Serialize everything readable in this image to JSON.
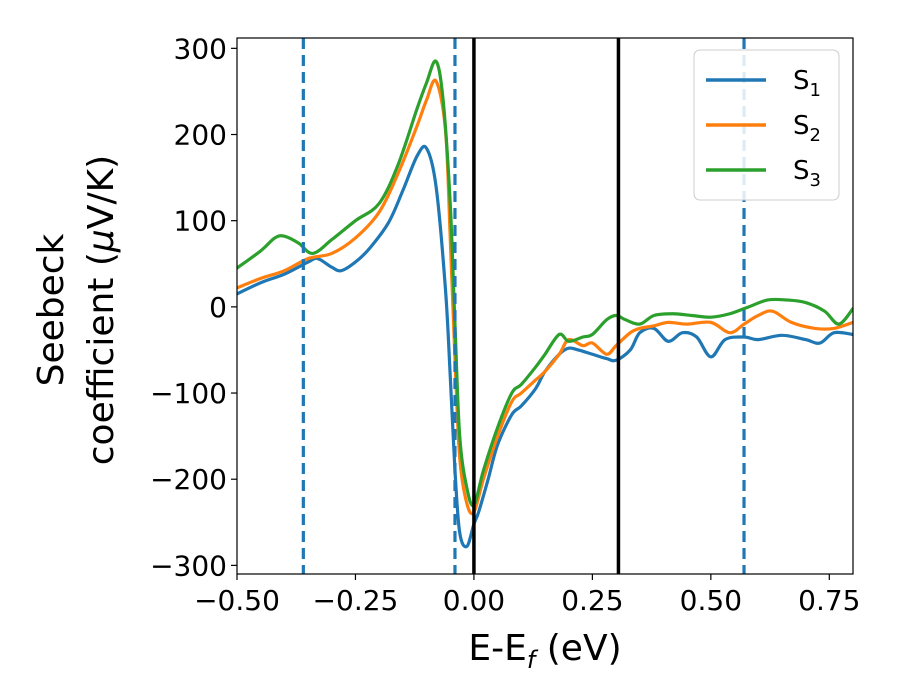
{
  "chart_data": {
    "type": "line",
    "title": "",
    "xlabel_main": "E-E",
    "xlabel_sub": "f",
    "xlabel_unit": " (eV)",
    "ylabel_line1": "Seebeck",
    "ylabel_line2_a": "coefficient  (",
    "ylabel_mu": "μ",
    "ylabel_line2_b": "V/K)",
    "xlim": [
      -0.5,
      0.8
    ],
    "ylim": [
      -310,
      312
    ],
    "xticks": [
      -0.5,
      -0.25,
      0.0,
      0.25,
      0.5,
      0.75
    ],
    "xtick_labels": [
      "−0.50",
      "−0.25",
      "0.00",
      "0.25",
      "0.50",
      "0.75"
    ],
    "yticks": [
      -300,
      -200,
      -100,
      0,
      100,
      200,
      300
    ],
    "ytick_labels": [
      "−300",
      "−200",
      "−100",
      "0",
      "100",
      "200",
      "300"
    ],
    "grid": false,
    "legend_placement": "top-right",
    "vlines_solid": [
      0.0,
      0.305
    ],
    "vlines_dashed": [
      -0.36,
      -0.04,
      0.57
    ],
    "vline_solid_color": "#000000",
    "vline_dashed_color": "#1f77b4",
    "series": [
      {
        "name_base": "S",
        "name_sub": "1",
        "color": "#1f77b4",
        "points": [
          [
            -0.5,
            15
          ],
          [
            -0.45,
            28
          ],
          [
            -0.4,
            38
          ],
          [
            -0.35,
            52
          ],
          [
            -0.33,
            56
          ],
          [
            -0.3,
            46
          ],
          [
            -0.28,
            42
          ],
          [
            -0.25,
            52
          ],
          [
            -0.22,
            68
          ],
          [
            -0.18,
            98
          ],
          [
            -0.15,
            135
          ],
          [
            -0.12,
            175
          ],
          [
            -0.1,
            184
          ],
          [
            -0.08,
            140
          ],
          [
            -0.06,
            20
          ],
          [
            -0.05,
            -80
          ],
          [
            -0.04,
            -190
          ],
          [
            -0.03,
            -262
          ],
          [
            -0.015,
            -278
          ],
          [
            0.0,
            -252
          ],
          [
            0.01,
            -238
          ],
          [
            0.03,
            -200
          ],
          [
            0.05,
            -160
          ],
          [
            0.08,
            -125
          ],
          [
            0.1,
            -115
          ],
          [
            0.13,
            -95
          ],
          [
            0.15,
            -75
          ],
          [
            0.18,
            -55
          ],
          [
            0.2,
            -48
          ],
          [
            0.22,
            -50
          ],
          [
            0.25,
            -55
          ],
          [
            0.28,
            -60
          ],
          [
            0.3,
            -62
          ],
          [
            0.33,
            -50
          ],
          [
            0.35,
            -30
          ],
          [
            0.38,
            -25
          ],
          [
            0.41,
            -40
          ],
          [
            0.44,
            -30
          ],
          [
            0.47,
            -35
          ],
          [
            0.5,
            -58
          ],
          [
            0.53,
            -38
          ],
          [
            0.57,
            -35
          ],
          [
            0.6,
            -38
          ],
          [
            0.65,
            -33
          ],
          [
            0.7,
            -38
          ],
          [
            0.73,
            -42
          ],
          [
            0.76,
            -30
          ],
          [
            0.8,
            -32
          ]
        ]
      },
      {
        "name_base": "S",
        "name_sub": "2",
        "color": "#ff7f0e",
        "points": [
          [
            -0.5,
            22
          ],
          [
            -0.45,
            33
          ],
          [
            -0.4,
            42
          ],
          [
            -0.35,
            56
          ],
          [
            -0.3,
            62
          ],
          [
            -0.25,
            80
          ],
          [
            -0.2,
            110
          ],
          [
            -0.16,
            155
          ],
          [
            -0.12,
            210
          ],
          [
            -0.1,
            240
          ],
          [
            -0.08,
            262
          ],
          [
            -0.06,
            205
          ],
          [
            -0.05,
            80
          ],
          [
            -0.04,
            -60
          ],
          [
            -0.03,
            -175
          ],
          [
            -0.015,
            -228
          ],
          [
            0.0,
            -238
          ],
          [
            0.02,
            -200
          ],
          [
            0.05,
            -150
          ],
          [
            0.08,
            -110
          ],
          [
            0.1,
            -100
          ],
          [
            0.13,
            -85
          ],
          [
            0.15,
            -75
          ],
          [
            0.18,
            -55
          ],
          [
            0.2,
            -38
          ],
          [
            0.23,
            -45
          ],
          [
            0.25,
            -42
          ],
          [
            0.28,
            -55
          ],
          [
            0.3,
            -45
          ],
          [
            0.33,
            -30
          ],
          [
            0.35,
            -25
          ],
          [
            0.38,
            -22
          ],
          [
            0.41,
            -18
          ],
          [
            0.45,
            -20
          ],
          [
            0.5,
            -18
          ],
          [
            0.54,
            -30
          ],
          [
            0.57,
            -20
          ],
          [
            0.6,
            -10
          ],
          [
            0.63,
            -5
          ],
          [
            0.67,
            -18
          ],
          [
            0.72,
            -25
          ],
          [
            0.76,
            -25
          ],
          [
            0.8,
            -18
          ]
        ]
      },
      {
        "name_base": "S",
        "name_sub": "3",
        "color": "#2ca02c",
        "points": [
          [
            -0.5,
            45
          ],
          [
            -0.45,
            65
          ],
          [
            -0.42,
            80
          ],
          [
            -0.4,
            82
          ],
          [
            -0.37,
            74
          ],
          [
            -0.34,
            62
          ],
          [
            -0.3,
            78
          ],
          [
            -0.25,
            100
          ],
          [
            -0.2,
            120
          ],
          [
            -0.16,
            165
          ],
          [
            -0.12,
            230
          ],
          [
            -0.1,
            260
          ],
          [
            -0.08,
            285
          ],
          [
            -0.065,
            240
          ],
          [
            -0.05,
            120
          ],
          [
            -0.04,
            -20
          ],
          [
            -0.03,
            -150
          ],
          [
            -0.015,
            -210
          ],
          [
            0.0,
            -230
          ],
          [
            0.02,
            -190
          ],
          [
            0.05,
            -140
          ],
          [
            0.08,
            -100
          ],
          [
            0.1,
            -90
          ],
          [
            0.13,
            -70
          ],
          [
            0.15,
            -55
          ],
          [
            0.18,
            -32
          ],
          [
            0.2,
            -40
          ],
          [
            0.23,
            -35
          ],
          [
            0.25,
            -32
          ],
          [
            0.28,
            -15
          ],
          [
            0.3,
            -10
          ],
          [
            0.32,
            -15
          ],
          [
            0.35,
            -20
          ],
          [
            0.38,
            -10
          ],
          [
            0.42,
            -8
          ],
          [
            0.46,
            -10
          ],
          [
            0.5,
            -12
          ],
          [
            0.54,
            -8
          ],
          [
            0.58,
            0
          ],
          [
            0.62,
            8
          ],
          [
            0.66,
            8
          ],
          [
            0.7,
            5
          ],
          [
            0.74,
            -5
          ],
          [
            0.77,
            -20
          ],
          [
            0.8,
            -2
          ]
        ]
      }
    ]
  }
}
